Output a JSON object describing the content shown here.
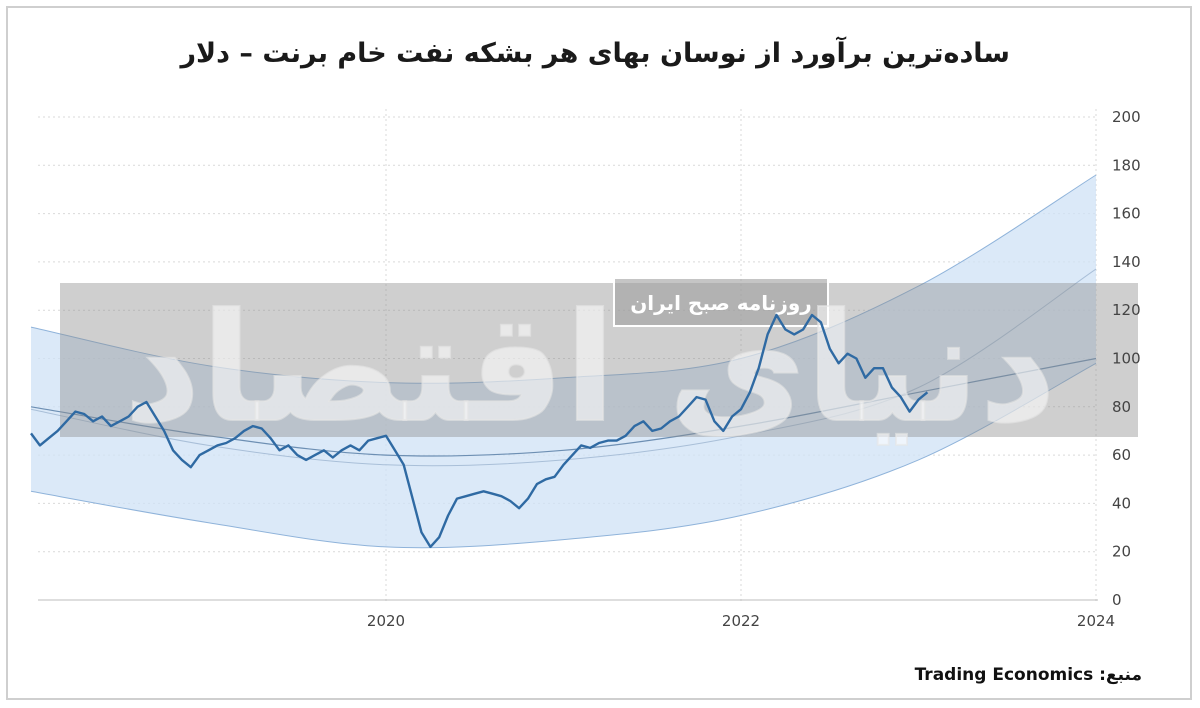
{
  "header": {
    "title": "ساده‌ترین برآورد از نوسان بهای هر بشکه نفت خام برنت – دلار"
  },
  "footer": {
    "source_label": "منبع:",
    "source_name": "Trading Economics"
  },
  "watermark": {
    "stamp_text": "روزنامه صبح ایران",
    "logo_text": "دنیای اقتصاد"
  },
  "colors": {
    "line": "#2f6aa3",
    "band_fill": "#cfe1f5",
    "band_edge": "#8fb3da",
    "mid_curve": "#a9bfd8",
    "overlay": "#8c8c8c",
    "grid": "#d9d9d9"
  },
  "chart_data": {
    "type": "line",
    "title": "ساده‌ترین برآورد از نوسان بهای هر بشکه نفت خام برنت – دلار",
    "xlabel": "",
    "ylabel": "",
    "x_ticks": [
      "2020",
      "2022",
      "2024"
    ],
    "y_ticks": [
      "0",
      "20",
      "40",
      "60",
      "80",
      "100",
      "120",
      "140",
      "160",
      "180",
      "200"
    ],
    "xlim": [
      2018.0,
      2024.0
    ],
    "ylim": [
      0,
      200
    ],
    "grid": true,
    "y_axis_side": "right",
    "series": [
      {
        "x": [
          2018.0,
          2018.05,
          2018.1,
          2018.15,
          2018.2,
          2018.25,
          2018.3,
          2018.35,
          2018.4,
          2018.45,
          2018.5,
          2018.55,
          2018.6,
          2018.65,
          2018.7,
          2018.75,
          2018.8,
          2018.85,
          2018.9,
          2018.95,
          2019.0,
          2019.05,
          2019.1,
          2019.15,
          2019.2,
          2019.25,
          2019.3,
          2019.35,
          2019.4,
          2019.45,
          2019.5,
          2019.55,
          2019.6,
          2019.65,
          2019.7,
          2019.75,
          2019.8,
          2019.85,
          2019.9,
          2019.95,
          2020.0,
          2020.05,
          2020.1,
          2020.15,
          2020.2,
          2020.25,
          2020.3,
          2020.35,
          2020.4,
          2020.45,
          2020.5,
          2020.55,
          2020.6,
          2020.65,
          2020.7,
          2020.75,
          2020.8,
          2020.85,
          2020.9,
          2020.95,
          2021.0,
          2021.05,
          2021.1,
          2021.15,
          2021.2,
          2021.25,
          2021.3,
          2021.35,
          2021.4,
          2021.45,
          2021.5,
          2021.55,
          2021.6,
          2021.65,
          2021.7,
          2021.75,
          2021.8,
          2021.85,
          2021.9,
          2021.95,
          2022.0,
          2022.05,
          2022.1,
          2022.15,
          2022.2,
          2022.25,
          2022.3,
          2022.35,
          2022.4,
          2022.45,
          2022.5,
          2022.55,
          2022.6,
          2022.65,
          2022.7,
          2022.75,
          2022.8,
          2022.85,
          2022.9,
          2022.95,
          2023.0,
          2023.05
        ],
        "y": [
          69,
          64,
          67,
          70,
          74,
          78,
          77,
          74,
          76,
          72,
          74,
          76,
          80,
          82,
          76,
          70,
          62,
          58,
          55,
          60,
          62,
          64,
          65,
          67,
          70,
          72,
          71,
          67,
          62,
          64,
          60,
          58,
          60,
          62,
          59,
          62,
          64,
          62,
          66,
          67,
          68,
          62,
          56,
          42,
          28,
          22,
          26,
          35,
          42,
          43,
          44,
          45,
          44,
          43,
          41,
          38,
          42,
          48,
          50,
          51,
          56,
          60,
          64,
          63,
          65,
          66,
          66,
          68,
          72,
          74,
          70,
          71,
          74,
          76,
          80,
          84,
          83,
          74,
          70,
          76,
          79,
          86,
          96,
          110,
          118,
          112,
          110,
          112,
          118,
          115,
          104,
          98,
          102,
          100,
          92,
          96,
          96,
          88,
          84,
          78,
          83,
          86
        ]
      }
    ],
    "forecast_band": {
      "x": [
        2018.0,
        2019.0,
        2020.0,
        2021.0,
        2022.0,
        2023.0,
        2024.0
      ],
      "upper": [
        113,
        97,
        90,
        92,
        100,
        130,
        176
      ],
      "lower": [
        45,
        32,
        22,
        25,
        35,
        58,
        98
      ],
      "mid": [
        79,
        64,
        56,
        58,
        68,
        88,
        137
      ]
    },
    "trend_curve": {
      "x": [
        2018.0,
        2019.0,
        2020.0,
        2021.0,
        2022.0,
        2023.0,
        2024.0
      ],
      "y": [
        80,
        68,
        60,
        62,
        72,
        86,
        100
      ]
    }
  }
}
